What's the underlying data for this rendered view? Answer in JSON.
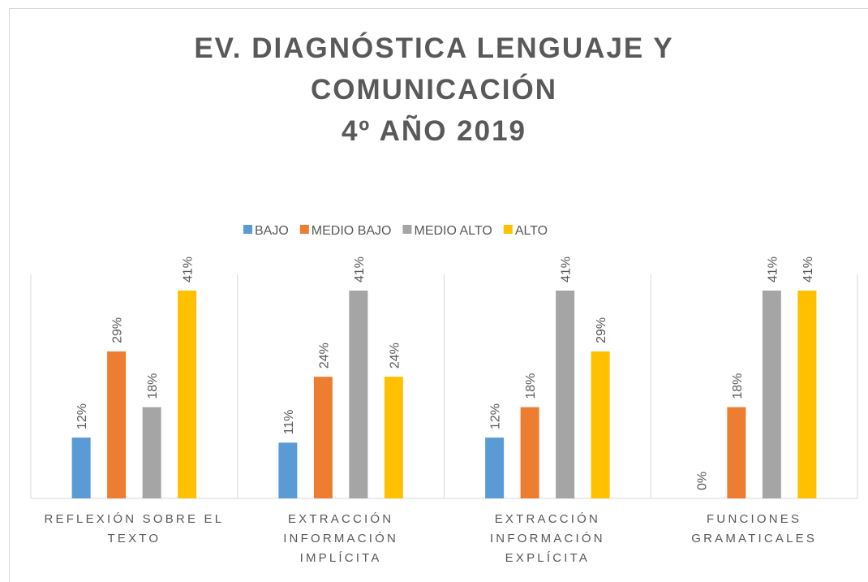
{
  "chart_data": {
    "type": "bar",
    "title": "EV. DIAGNÓSTICA LENGUAJE Y COMUNICACIÓN\n4º AÑO 2019",
    "categories": [
      "REFLEXIÓN SOBRE EL TEXTO",
      "EXTRACCIÓN INFORMACIÓN IMPLÍCITA",
      "EXTRACCIÓN INFORMACIÓN EXPLÍCITA",
      "FUNCIONES GRAMATICALES"
    ],
    "series": [
      {
        "name": "BAJO",
        "color": "#5b9bd5",
        "values": [
          12,
          11,
          12,
          0
        ],
        "value_labels": [
          "12%",
          "11%",
          "12%",
          "0%"
        ]
      },
      {
        "name": "MEDIO BAJO",
        "color": "#ed7d31",
        "values": [
          29,
          24,
          18,
          18
        ],
        "value_labels": [
          "29%",
          "24%",
          "18%",
          "18%"
        ]
      },
      {
        "name": "MEDIO ALTO",
        "color": "#a5a5a5",
        "values": [
          18,
          41,
          41,
          41
        ],
        "value_labels": [
          "18%",
          "41%",
          "41%",
          "41%"
        ]
      },
      {
        "name": "ALTO",
        "color": "#ffc000",
        "values": [
          41,
          24,
          29,
          41
        ],
        "value_labels": [
          "41%",
          "24%",
          "29%",
          "41%"
        ]
      }
    ],
    "legend": "top"
  }
}
